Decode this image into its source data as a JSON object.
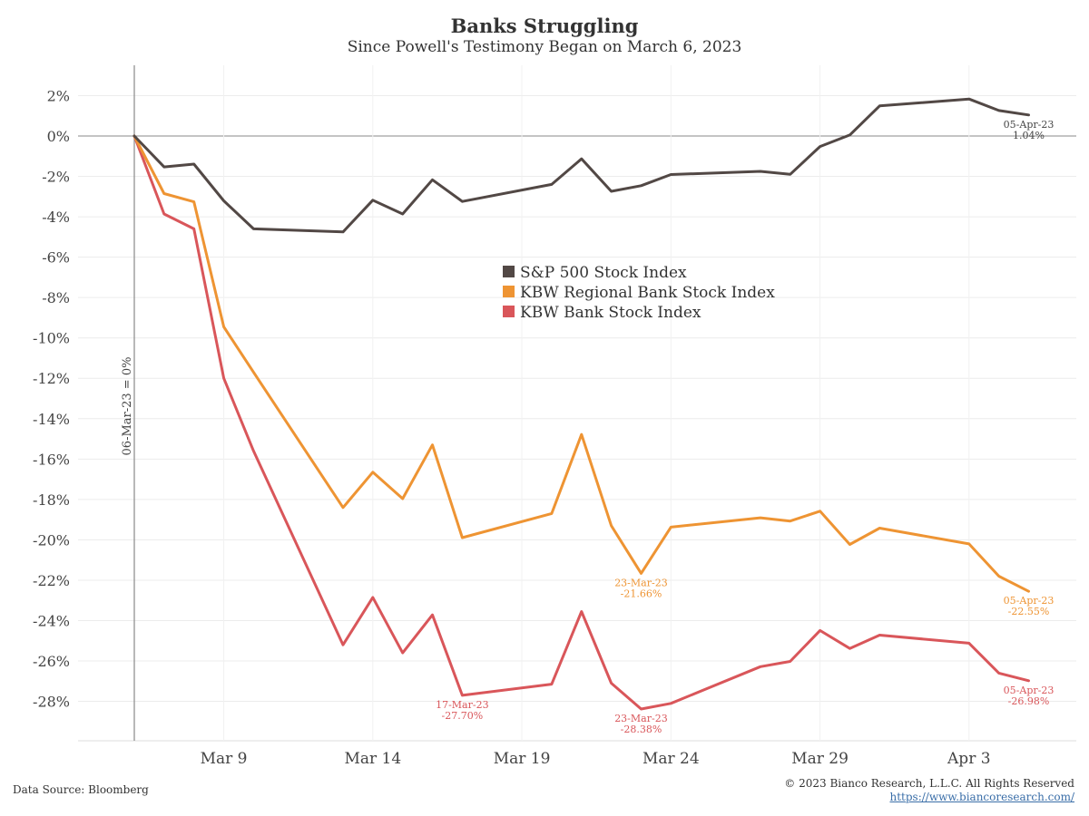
{
  "header": {
    "title": "Banks Struggling",
    "subtitle": "Since Powell's Testimony Began on March 6, 2023"
  },
  "footer": {
    "source": "Data Source: Bloomberg",
    "copyright": "© 2023 Bianco Research, L.L.C. All Rights Reserved",
    "url": "https://www.biancoresearch.com/"
  },
  "chart_data": {
    "type": "line",
    "x_domain": [
      "2023-03-06",
      "2023-04-05"
    ],
    "ylim": [
      -30,
      3
    ],
    "y_ticks": [
      2,
      0,
      -2,
      -4,
      -6,
      -8,
      -10,
      -12,
      -14,
      -16,
      -18,
      -20,
      -22,
      -24,
      -26,
      -28
    ],
    "y_tick_labels": [
      "2%",
      "0%",
      "-2%",
      "-4%",
      "-6%",
      "-8%",
      "-10%",
      "-12%",
      "-14%",
      "-16%",
      "-18%",
      "-20%",
      "-22%",
      "-24%",
      "-26%",
      "-28%"
    ],
    "x_ticks": [
      "2023-03-09",
      "2023-03-14",
      "2023-03-19",
      "2023-03-24",
      "2023-03-29",
      "2023-04-03"
    ],
    "x_tick_labels": [
      "Mar 9",
      "Mar 14",
      "Mar 19",
      "Mar 24",
      "Mar 29",
      "Apr 3"
    ],
    "reference_line_label": "06-Mar-23 = 0%",
    "legend_position": "center",
    "grid": true,
    "x": [
      "2023-03-06",
      "2023-03-07",
      "2023-03-08",
      "2023-03-09",
      "2023-03-10",
      "2023-03-13",
      "2023-03-14",
      "2023-03-15",
      "2023-03-16",
      "2023-03-17",
      "2023-03-20",
      "2023-03-21",
      "2023-03-22",
      "2023-03-23",
      "2023-03-24",
      "2023-03-27",
      "2023-03-28",
      "2023-03-29",
      "2023-03-30",
      "2023-03-31",
      "2023-04-03",
      "2023-04-04",
      "2023-04-05"
    ],
    "series": [
      {
        "name": "S&P 500 Stock Index",
        "color": "#524845",
        "values": [
          0,
          -1.53,
          -1.39,
          -3.21,
          -4.6,
          -4.75,
          -3.18,
          -3.86,
          -2.17,
          -3.24,
          -2.4,
          -1.13,
          -2.74,
          -2.46,
          -1.91,
          -1.75,
          -1.9,
          -0.52,
          0.05,
          1.49,
          1.83,
          1.26,
          1.04
        ],
        "annotations": [
          {
            "date": "2023-04-05",
            "value": 1.04,
            "label_date": "05-Apr-23",
            "label_value": "1.04%"
          }
        ]
      },
      {
        "name": "KBW Regional Bank Stock Index",
        "color": "#EE9433",
        "values": [
          0,
          -2.85,
          -3.26,
          -9.45,
          -11.7,
          -18.4,
          -16.65,
          -17.96,
          -15.3,
          -19.89,
          -18.7,
          -14.78,
          -19.3,
          -21.66,
          -19.37,
          -18.91,
          -19.07,
          -18.58,
          -20.23,
          -19.42,
          -20.2,
          -21.8,
          -22.55
        ],
        "annotations": [
          {
            "date": "2023-03-23",
            "value": -21.66,
            "label_date": "23-Mar-23",
            "label_value": "-21.66%"
          },
          {
            "date": "2023-04-05",
            "value": -22.55,
            "label_date": "05-Apr-23",
            "label_value": "-22.55%"
          }
        ]
      },
      {
        "name": "KBW Bank Stock Index",
        "color": "#D9565A",
        "values": [
          0,
          -3.86,
          -4.6,
          -12.0,
          -15.6,
          -25.2,
          -22.85,
          -25.6,
          -23.72,
          -27.7,
          -27.15,
          -23.55,
          -27.1,
          -28.38,
          -28.1,
          -26.28,
          -26.02,
          -24.49,
          -25.38,
          -24.72,
          -25.12,
          -26.6,
          -26.98
        ],
        "annotations": [
          {
            "date": "2023-03-17",
            "value": -27.7,
            "label_date": "17-Mar-23",
            "label_value": "-27.70%"
          },
          {
            "date": "2023-03-23",
            "value": -28.38,
            "label_date": "23-Mar-23",
            "label_value": "-28.38%"
          },
          {
            "date": "2023-04-05",
            "value": -26.98,
            "label_date": "05-Apr-23",
            "label_value": "-26.98%"
          }
        ]
      }
    ]
  }
}
